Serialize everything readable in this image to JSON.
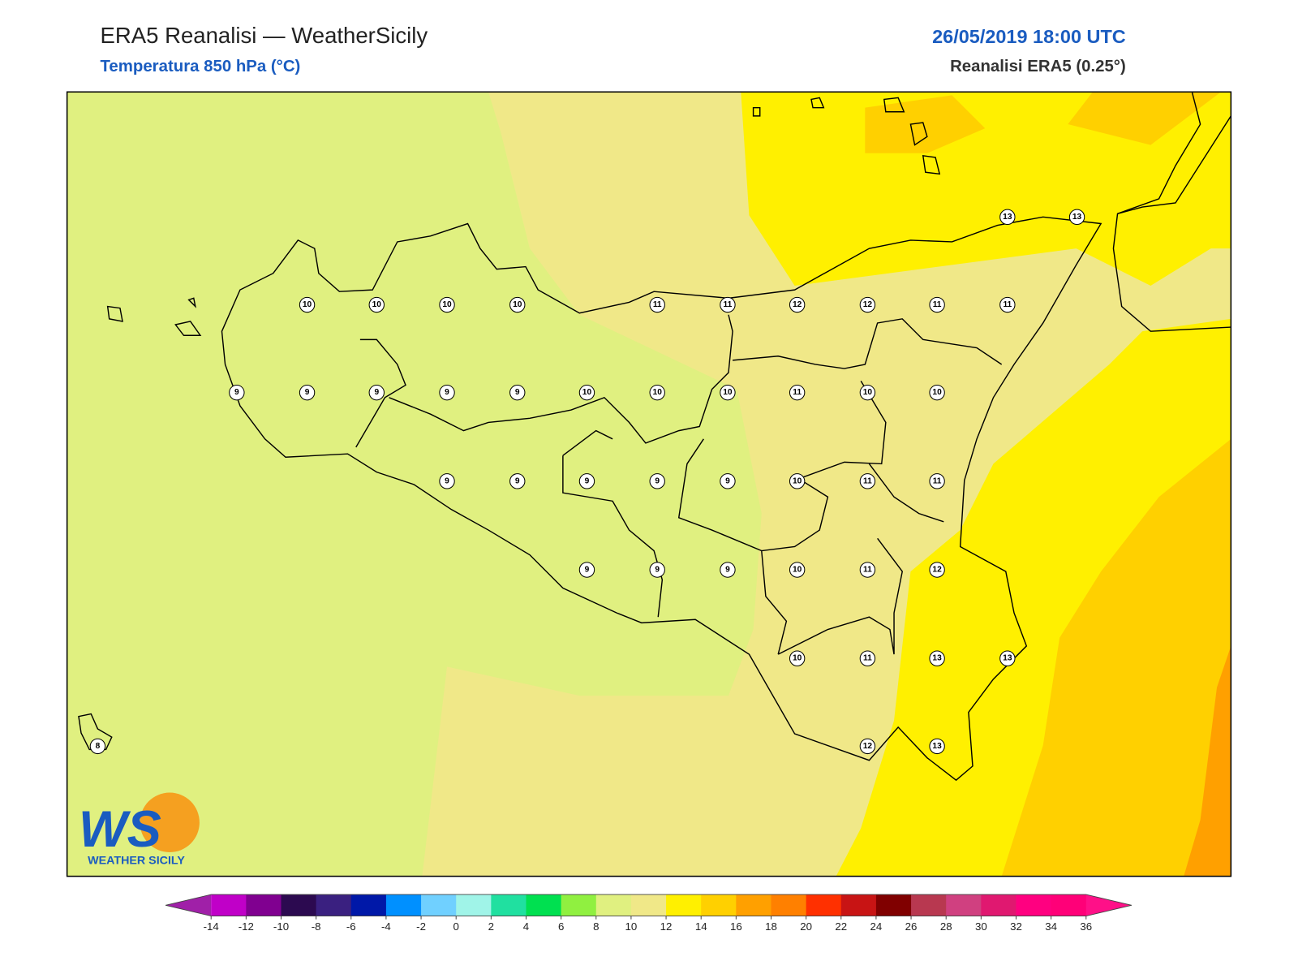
{
  "header": {
    "title": "ERA5 Reanalisi — WeatherSicily",
    "subtitle": "Temperatura 850 hPa (°C)",
    "datetime": "26/05/2019 18:00 UTC",
    "source": "Reanalisi ERA5 (0.25°)"
  },
  "map": {
    "stations": [
      13,
      13,
      10,
      10,
      10,
      10,
      11,
      11,
      12,
      12,
      11,
      11,
      9,
      9,
      9,
      9,
      9,
      10,
      10,
      10,
      11,
      10,
      10,
      9,
      9,
      9,
      9,
      9,
      10,
      11,
      11,
      9,
      9,
      9,
      10,
      11,
      12,
      10,
      11,
      13,
      13,
      12,
      13,
      8
    ]
  },
  "colorbar": {
    "ticks": [
      -14,
      -12,
      -10,
      -8,
      -6,
      -4,
      -2,
      0,
      2,
      4,
      6,
      8,
      10,
      12,
      14,
      16,
      18,
      20,
      22,
      24,
      26,
      28,
      30,
      32,
      34,
      36
    ],
    "colors": [
      "#c000c8",
      "#800090",
      "#2c0a50",
      "#3a2080",
      "#0018a8",
      "#0090ff",
      "#70d0ff",
      "#a0f4e8",
      "#20e0a0",
      "#00e050",
      "#90f040",
      "#e0f080",
      "#f0e888",
      "#fff000",
      "#ffd000",
      "#ffa000",
      "#ff8000",
      "#ff3000",
      "#c81414",
      "#800000",
      "#b83850",
      "#d04080",
      "#e01870",
      "#ff0080",
      "#ff0078"
    ],
    "under_color": "#a020a8",
    "over_color": "#ff1088"
  },
  "logo": {
    "mark": "WS",
    "name": "WEATHER SICILY"
  }
}
